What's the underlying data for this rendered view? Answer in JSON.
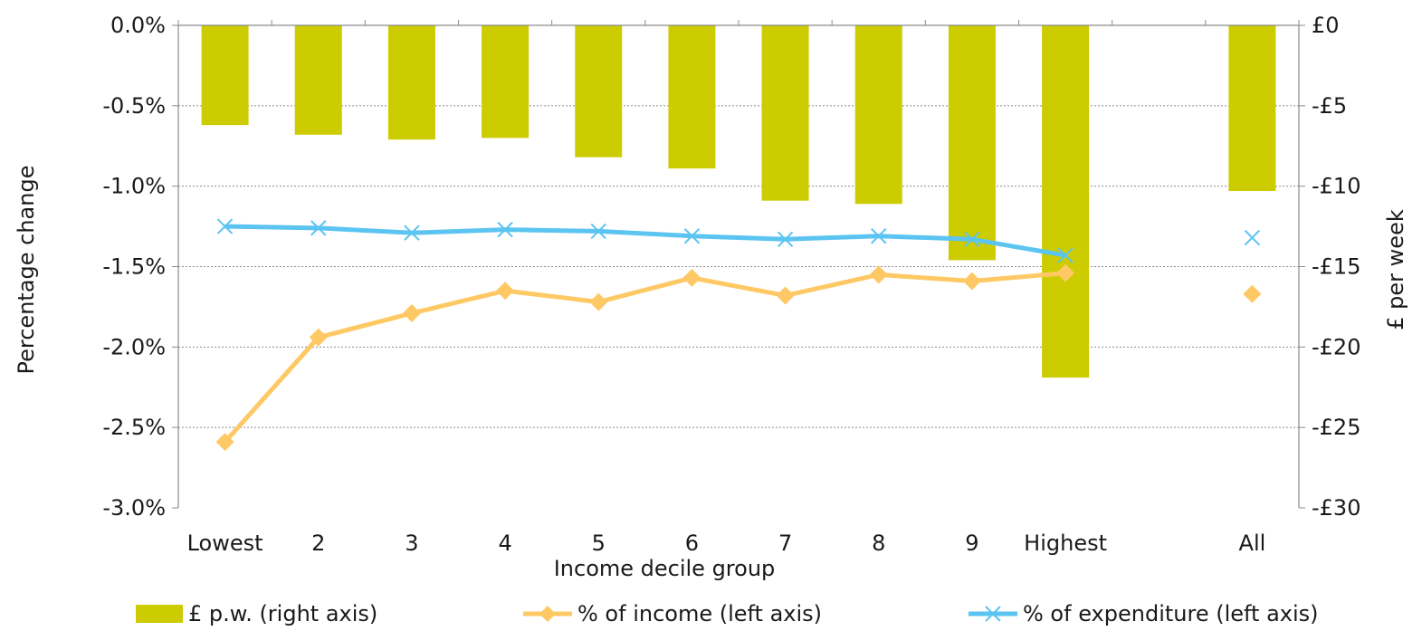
{
  "chart_data": {
    "type": "bar",
    "categories": [
      "Lowest",
      "2",
      "3",
      "4",
      "5",
      "6",
      "7",
      "8",
      "9",
      "Highest",
      "",
      "All"
    ],
    "xlabel": "Income decile group",
    "ylabel": "Percentage change",
    "y2label": "£ per week",
    "ylim": [
      -3.0,
      0.0
    ],
    "y2lim": [
      -30,
      0
    ],
    "yticks": [
      "0.0%",
      "-0.5%",
      "-1.0%",
      "-1.5%",
      "-2.0%",
      "-2.5%",
      "-3.0%"
    ],
    "y2ticks": [
      "£0",
      "-£5",
      "-£10",
      "-£15",
      "-£20",
      "-£25",
      "-£30"
    ],
    "grid": true,
    "legend_position": "bottom",
    "series": [
      {
        "name": "£ p.w. (right axis)",
        "kind": "bar",
        "axis": "right",
        "color": "#cccc00",
        "values": [
          -6.2,
          -6.8,
          -7.1,
          -7.0,
          -8.2,
          -8.9,
          -10.9,
          -11.1,
          -14.6,
          -21.9,
          null,
          -10.3
        ]
      },
      {
        "name": "% of income (left axis)",
        "kind": "line",
        "marker": "diamond",
        "axis": "left",
        "color": "#fec965",
        "values": [
          -2.59,
          -1.94,
          -1.79,
          -1.65,
          -1.72,
          -1.57,
          -1.68,
          -1.55,
          -1.59,
          -1.54,
          null,
          -1.67
        ]
      },
      {
        "name": "% of expenditure (left axis)",
        "kind": "line",
        "marker": "x",
        "axis": "left",
        "color": "#5bc4f1",
        "values": [
          -1.25,
          -1.26,
          -1.29,
          -1.27,
          -1.28,
          -1.31,
          -1.33,
          -1.31,
          -1.33,
          -1.43,
          null,
          -1.32
        ]
      }
    ]
  }
}
